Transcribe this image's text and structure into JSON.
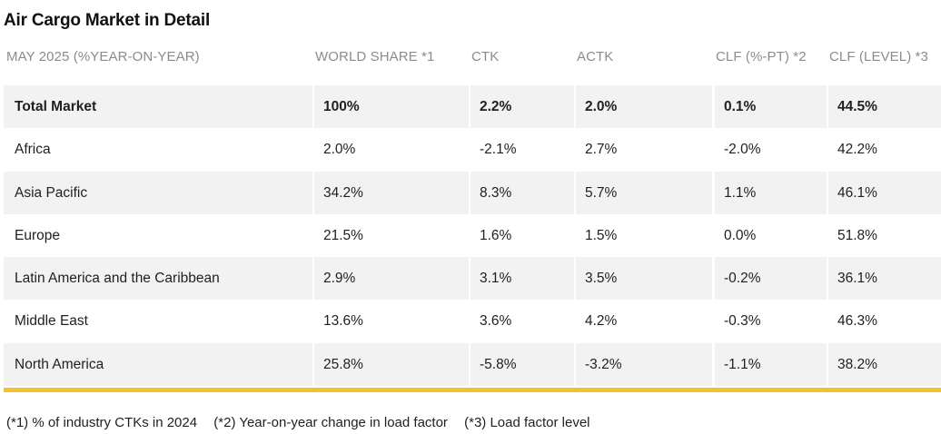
{
  "title": "Air Cargo Market in Detail",
  "header": {
    "region": "MAY 2025 (%YEAR-ON-YEAR)",
    "world_share": "WORLD SHARE *1",
    "ctk": "CTK",
    "actk": "ACTK",
    "clf_pt": "CLF (%-PT) *2",
    "clf_level": "CLF (LEVEL) *3"
  },
  "rows": [
    {
      "region": "Total Market",
      "world_share": "100%",
      "ctk": "2.2%",
      "actk": "2.0%",
      "clf_pt": "0.1%",
      "clf_level": "44.5%"
    },
    {
      "region": "Africa",
      "world_share": "2.0%",
      "ctk": "-2.1%",
      "actk": "2.7%",
      "clf_pt": "-2.0%",
      "clf_level": "42.2%"
    },
    {
      "region": "Asia Pacific",
      "world_share": "34.2%",
      "ctk": "8.3%",
      "actk": "5.7%",
      "clf_pt": "1.1%",
      "clf_level": "46.1%"
    },
    {
      "region": "Europe",
      "world_share": "21.5%",
      "ctk": "1.6%",
      "actk": "1.5%",
      "clf_pt": "0.0%",
      "clf_level": "51.8%"
    },
    {
      "region": "Latin America and the Caribbean",
      "world_share": "2.9%",
      "ctk": "3.1%",
      "actk": "3.5%",
      "clf_pt": "-0.2%",
      "clf_level": "36.1%"
    },
    {
      "region": "Middle East",
      "world_share": "13.6%",
      "ctk": "3.6%",
      "actk": "4.2%",
      "clf_pt": "-0.3%",
      "clf_level": "46.3%"
    },
    {
      "region": "North America",
      "world_share": "25.8%",
      "ctk": "-5.8%",
      "actk": "-3.2%",
      "clf_pt": "-1.1%",
      "clf_level": "38.2%"
    }
  ],
  "footnotes": {
    "note1": "(*1) % of industry CTKs in 2024",
    "note2": "(*2) Year-on-year change in load factor",
    "note3": "(*3) Load factor level"
  },
  "colors": {
    "accent_bar": "#f2c230",
    "shaded_row": "#f2f2f2",
    "header_text": "#8c8c8c"
  }
}
